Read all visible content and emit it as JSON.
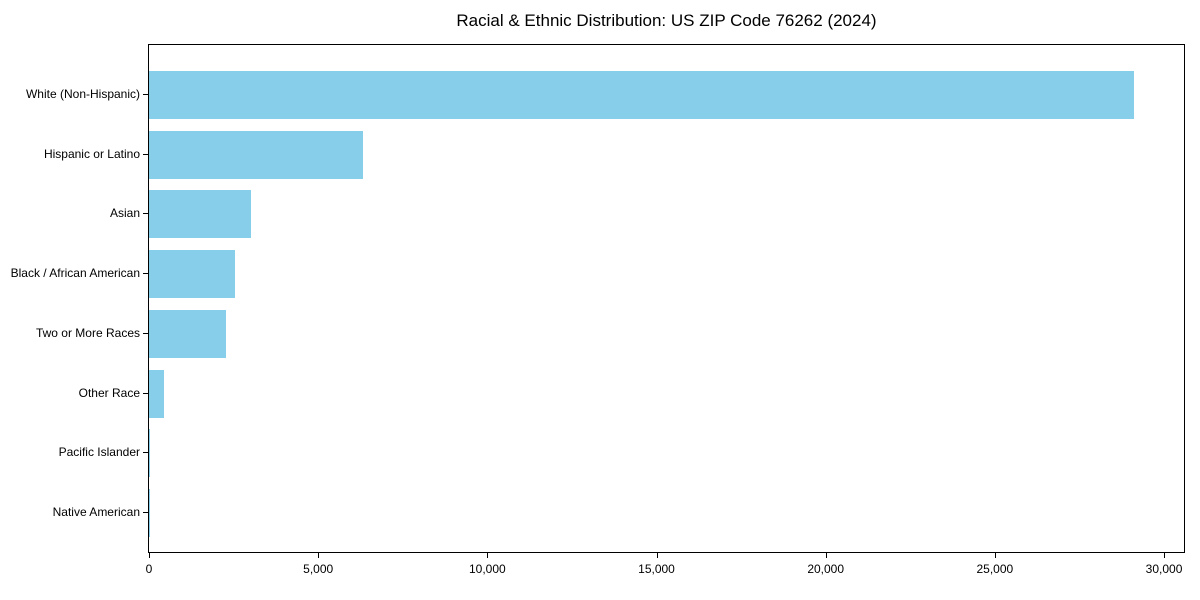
{
  "chart_data": {
    "type": "bar",
    "orientation": "horizontal",
    "title": "Racial & Ethnic Distribution: US ZIP Code 76262 (2024)",
    "xlabel": "",
    "ylabel": "",
    "categories": [
      "White (Non-Hispanic)",
      "Hispanic or Latino",
      "Asian",
      "Black / African American",
      "Two or More Races",
      "Other Race",
      "Pacific Islander",
      "Native American"
    ],
    "values": [
      29100,
      6320,
      3010,
      2540,
      2270,
      430,
      30,
      10
    ],
    "xlim": [
      0,
      30590
    ],
    "xticks": [
      0,
      5000,
      10000,
      15000,
      20000,
      25000,
      30000
    ],
    "xtick_labels": [
      "0",
      "5,000",
      "10,000",
      "15,000",
      "20,000",
      "25,000",
      "30,000"
    ],
    "bar_color": "#87CEEB",
    "axis_color": "#000000",
    "text_color": "#000000",
    "background_color": "#ffffff",
    "grid": false,
    "legend": null
  }
}
